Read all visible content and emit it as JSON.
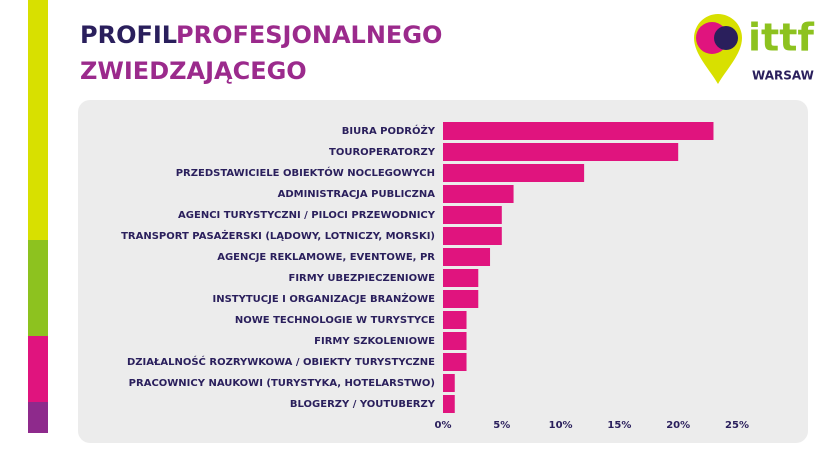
{
  "chart_data": {
    "type": "bar",
    "orientation": "horizontal",
    "title_parts": [
      "PROFIL",
      "PROFESJONALNEGO",
      "ZWIEDZAJĄCEGO"
    ],
    "logo": {
      "text": "ittf",
      "subtitle": "WARSAW"
    },
    "categories": [
      "BIURA PODRÓŻY",
      "TOUROPERATORZY",
      "PRZEDSTAWICIELE OBIEKTÓW NOCLEGOWYCH",
      "ADMINISTRACJA PUBLICZNA",
      "AGENCI TURYSTYCZNI / PILOCI PRZEWODNICY",
      "TRANSPORT PASAŻERSKI (LĄDOWY, LOTNICZY, MORSKI)",
      "AGENCJE REKLAMOWE, EVENTOWE, PR",
      "FIRMY UBEZPIECZENIOWE",
      "INSTYTUCJE I ORGANIZACJE BRANŻOWE",
      "NOWE TECHNOLOGIE W TURYSTYCE",
      "FIRMY SZKOLENIOWE",
      "DZIAŁALNOŚĆ ROZRYWKOWA / OBIEKTY TURYSTYCZNE",
      "PRACOWNICY NAUKOWI (TURYSTYKA, HOTELARSTWO)",
      "BLOGERZY / YOUTUBERZY"
    ],
    "values": [
      23,
      20,
      12,
      6,
      5,
      5,
      4,
      3,
      3,
      2,
      2,
      2,
      1,
      1
    ],
    "color": "#e0147e",
    "xlim": [
      0,
      25
    ],
    "xticks": [
      {
        "value": 0,
        "label": "0%"
      },
      {
        "value": 5,
        "label": "5%"
      },
      {
        "value": 10,
        "label": "10%"
      },
      {
        "value": 15,
        "label": "15%"
      },
      {
        "value": 20,
        "label": "20%"
      },
      {
        "value": 25,
        "label": "25%"
      }
    ],
    "grid": false
  }
}
